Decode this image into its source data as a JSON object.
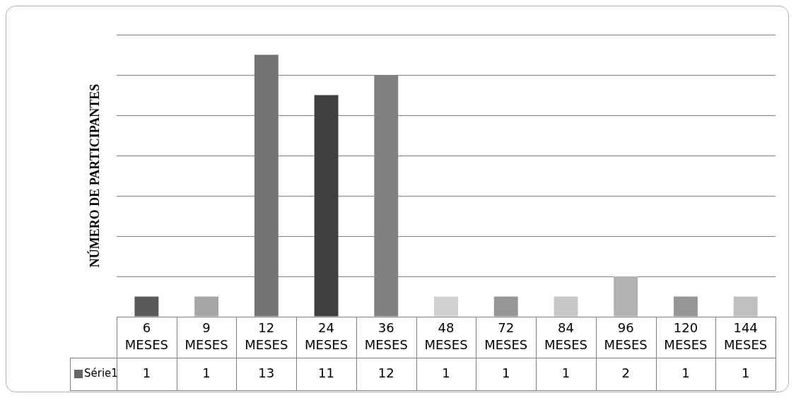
{
  "chart_data": {
    "type": "bar",
    "ylabel": "NÚMERO DE PARTICIPANTES",
    "categories": [
      "6 MESES",
      "9 MESES",
      "12 MESES",
      "24 MESES",
      "36 MESES",
      "48 MESES",
      "72 MESES",
      "84 MESES",
      "96 MESES",
      "120 MESES",
      "144 MESES"
    ],
    "series": [
      {
        "name": "Série1",
        "color": "#666666",
        "colors": [
          "#595959",
          "#a6a6a6",
          "#737373",
          "#404040",
          "#808080",
          "#d0d0d0",
          "#969696",
          "#c8c8c8",
          "#b2b2b2",
          "#969696",
          "#bfbfbf"
        ],
        "values": [
          1,
          1,
          13,
          11,
          12,
          1,
          1,
          1,
          2,
          1,
          1
        ]
      }
    ],
    "ylim": [
      0,
      14
    ],
    "yticks": [
      {
        "value": 0,
        "label": null
      },
      {
        "value": 2,
        "label": null
      },
      {
        "value": 4,
        "label": null
      },
      {
        "value": 6,
        "label": null
      },
      {
        "value": 8,
        "label": null
      },
      {
        "value": 10,
        "label": null
      },
      {
        "value": 12,
        "label": null
      },
      {
        "value": 14,
        "label": null
      }
    ],
    "grid": "y",
    "legend": "bottom",
    "data_labels": true
  }
}
